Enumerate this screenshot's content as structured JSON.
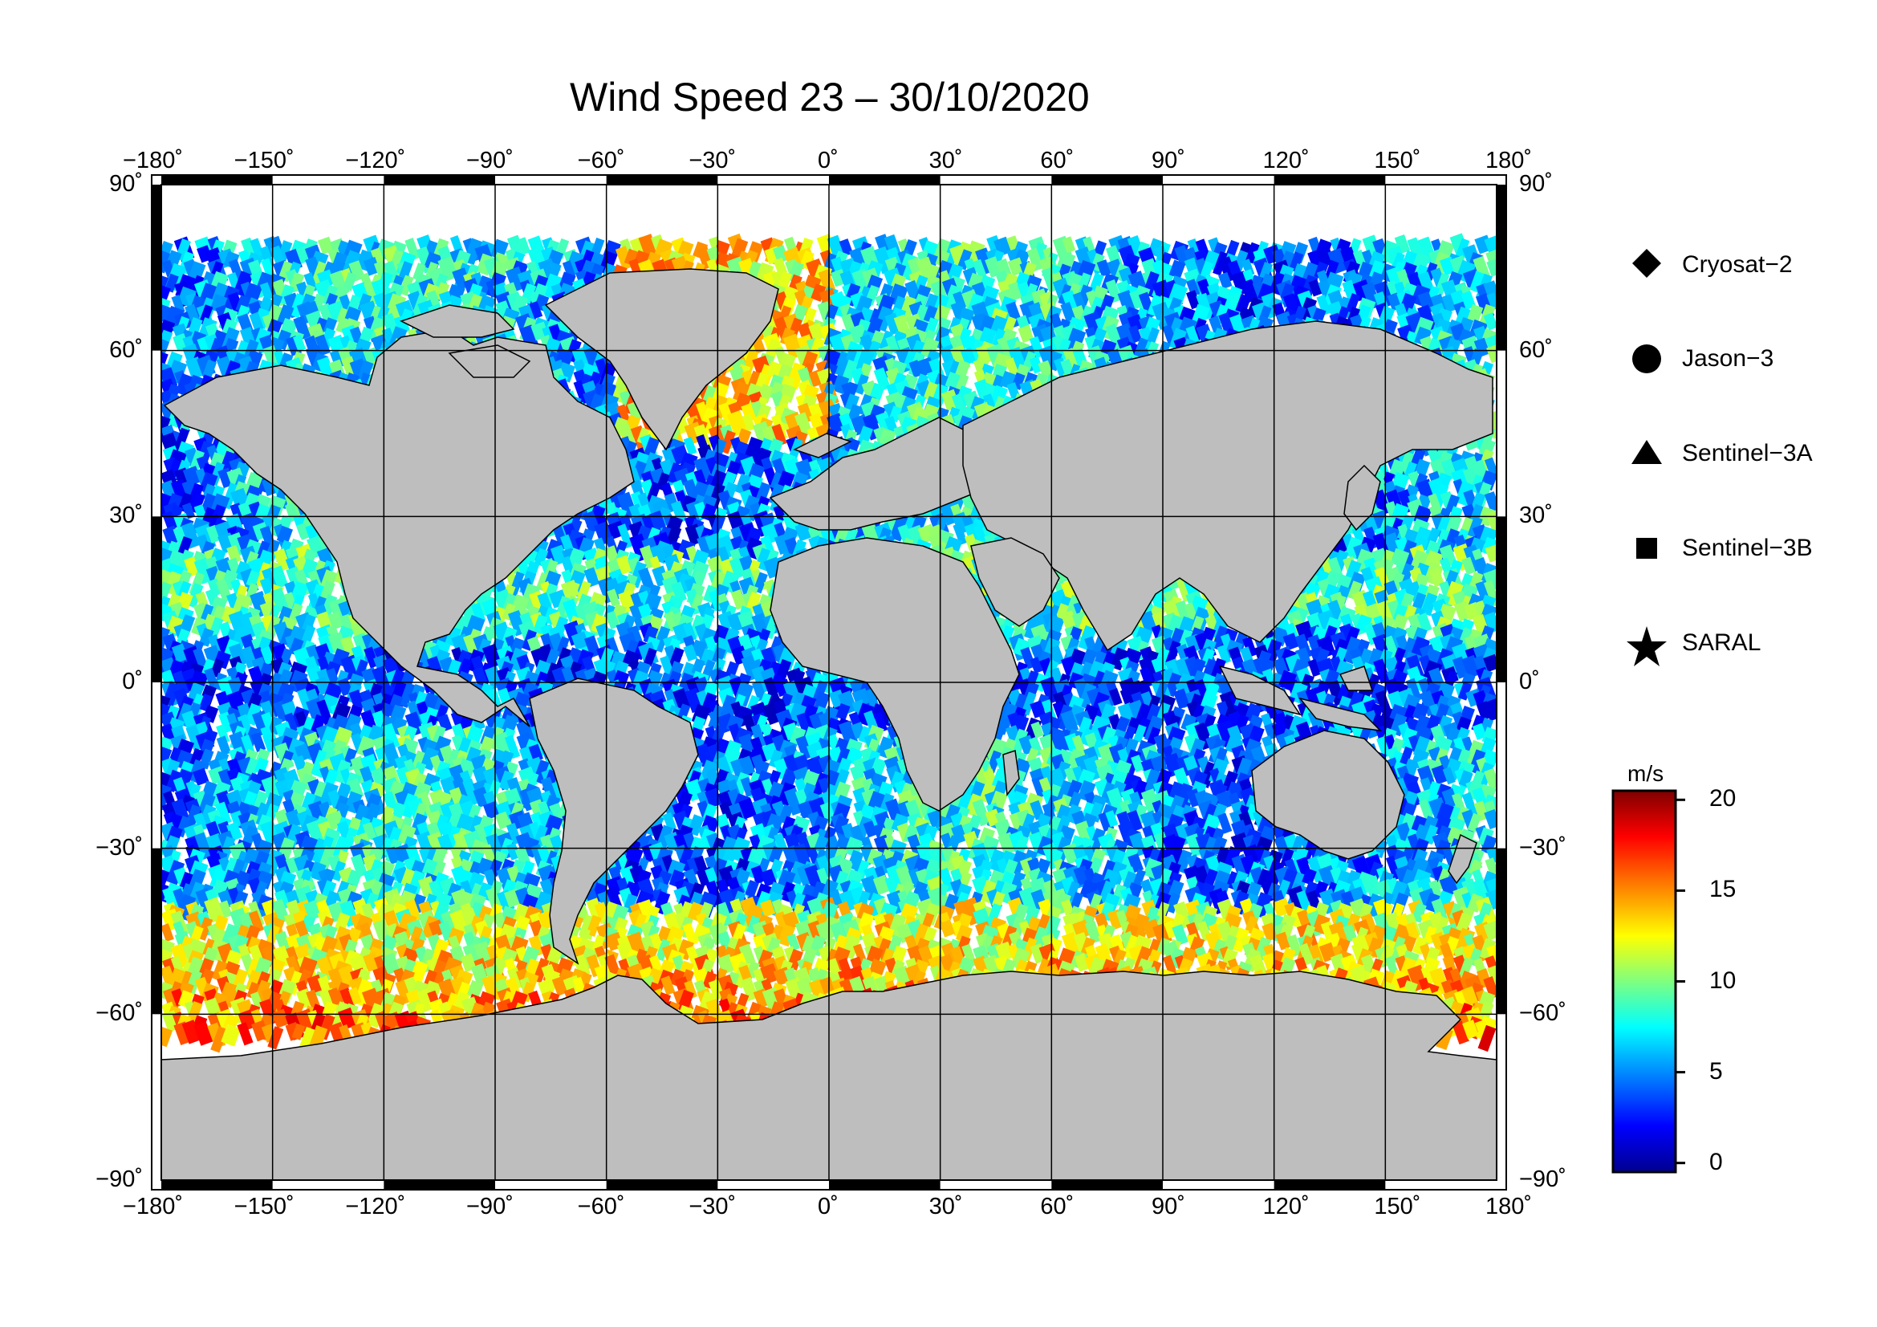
{
  "title": "Wind Speed 23 – 30/10/2020",
  "map": {
    "projection": "equirectangular",
    "lon_range": [
      -180,
      180
    ],
    "lat_range": [
      -90,
      90
    ],
    "lon_ticks": [
      {
        "value": -180,
        "label": "−180˚"
      },
      {
        "value": -150,
        "label": "−150˚"
      },
      {
        "value": -120,
        "label": "−120˚"
      },
      {
        "value": -90,
        "label": "−90˚"
      },
      {
        "value": -60,
        "label": "−60˚"
      },
      {
        "value": -30,
        "label": "−30˚"
      },
      {
        "value": 0,
        "label": "0˚"
      },
      {
        "value": 30,
        "label": "30˚"
      },
      {
        "value": 60,
        "label": "60˚"
      },
      {
        "value": 90,
        "label": "90˚"
      },
      {
        "value": 120,
        "label": "120˚"
      },
      {
        "value": 150,
        "label": "150˚"
      },
      {
        "value": 180,
        "label": "180˚"
      }
    ],
    "lat_ticks_left": [
      {
        "value": 90,
        "label": "90˚"
      },
      {
        "value": 60,
        "label": "60˚"
      },
      {
        "value": 30,
        "label": "30˚"
      },
      {
        "value": 0,
        "label": "0˚"
      },
      {
        "value": -30,
        "label": "−30˚"
      },
      {
        "value": -60,
        "label": "−60˚"
      },
      {
        "value": -90,
        "label": "−90˚"
      }
    ],
    "lat_ticks_right": [
      {
        "value": 90,
        "label": "90˚"
      },
      {
        "value": 60,
        "label": "60˚"
      },
      {
        "value": 30,
        "label": "30˚"
      },
      {
        "value": 0,
        "label": "0˚"
      },
      {
        "value": -30,
        "label": "−30˚"
      },
      {
        "value": -60,
        "label": "−60˚"
      },
      {
        "value": -90,
        "label": "−90˚"
      }
    ],
    "grid": true,
    "land_color": "#bebebe",
    "ice_color": "#ffffff",
    "ocean_coverage_lat": [
      -64,
      80
    ]
  },
  "legend": {
    "placement": "right",
    "items": [
      {
        "symbol": "diamond",
        "label": "Cryosat−2"
      },
      {
        "symbol": "circle",
        "label": "Jason−3"
      },
      {
        "symbol": "triangle",
        "label": "Sentinel−3A"
      },
      {
        "symbol": "square",
        "label": "Sentinel−3B"
      },
      {
        "symbol": "star",
        "label": "SARAL"
      }
    ]
  },
  "colorbar": {
    "unit": "m/s",
    "min": -0.5,
    "max": 20.5,
    "ticks": [
      {
        "value": 20,
        "label": "20"
      },
      {
        "value": 15,
        "label": "15"
      },
      {
        "value": 10,
        "label": "10"
      },
      {
        "value": 5,
        "label": "5"
      },
      {
        "value": 0,
        "label": "0"
      }
    ],
    "colors": [
      "#00008f",
      "#0000ff",
      "#007fff",
      "#00ffff",
      "#7fff7f",
      "#ffff00",
      "#ff7f00",
      "#ff0000",
      "#7f0000"
    ]
  }
}
